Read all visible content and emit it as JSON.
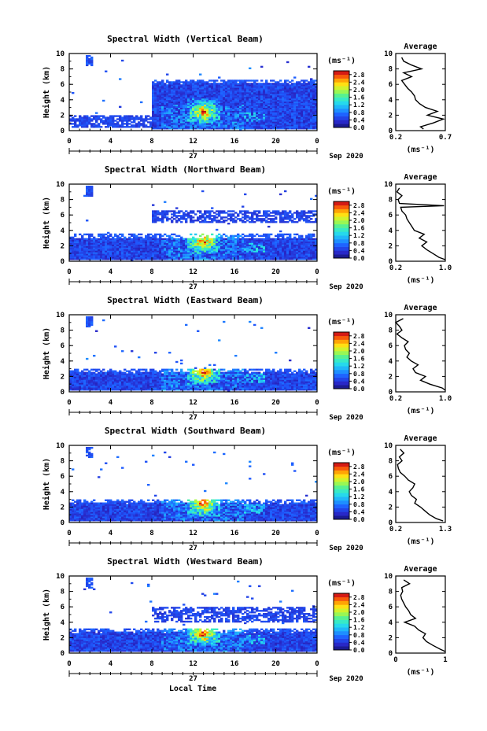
{
  "figure": {
    "xlabel": "Local Time",
    "date_label": "Sep 2020",
    "day_label": "27",
    "unit_label": "(ms⁻¹)"
  },
  "chart_data": [
    {
      "type": "heatmap",
      "title": "Spectral Width (Vertical Beam)",
      "ylabel": "Height (km)",
      "xlim": [
        0,
        24
      ],
      "ylim": [
        0,
        10
      ],
      "xticks": [
        "0",
        "4",
        "8",
        "12",
        "16",
        "20",
        "0"
      ],
      "yticks": [
        "0",
        "2",
        "4",
        "6",
        "8",
        "10"
      ],
      "colorbar": {
        "ticks": [
          "0.0",
          "0.4",
          "0.8",
          "1.2",
          "1.6",
          "2.0",
          "2.4",
          "2.8"
        ],
        "range": [
          0,
          3.0
        ]
      },
      "features": {
        "core_height": [
          0.2,
          6.5
        ],
        "core_hours": [
          8,
          24
        ],
        "peak_hour": 13,
        "peak_height": 2.5,
        "low_band_hours": [
          0,
          8
        ],
        "low_band_height": [
          0.5,
          2
        ],
        "blob_hour": 2,
        "blob_height": [
          8.5,
          9.7
        ]
      },
      "average_profile": {
        "title": "Average",
        "xlabel": "(ms⁻¹)",
        "xticks": [
          "0.2",
          "0.7"
        ],
        "xlim": [
          0.2,
          0.7
        ],
        "yticks": [
          "0",
          "2",
          "4",
          "6",
          "8",
          "10"
        ],
        "height": [
          0.2,
          0.5,
          1.0,
          1.5,
          2.0,
          2.5,
          3.0,
          3.5,
          4.0,
          4.5,
          5.0,
          5.5,
          6.0,
          6.5,
          7.0,
          7.5,
          8.0,
          8.5,
          9.0,
          9.5
        ],
        "value": [
          0.48,
          0.45,
          0.58,
          0.68,
          0.52,
          0.62,
          0.5,
          0.44,
          0.4,
          0.39,
          0.36,
          0.32,
          0.29,
          0.26,
          0.36,
          0.28,
          0.46,
          0.36,
          0.28,
          0.26
        ]
      }
    },
    {
      "type": "heatmap",
      "title": "Spectral Width (Northward Beam)",
      "ylabel": "Height (km)",
      "xlim": [
        0,
        24
      ],
      "ylim": [
        0,
        10
      ],
      "xticks": [
        "0",
        "4",
        "8",
        "12",
        "16",
        "20",
        "0"
      ],
      "yticks": [
        "0",
        "2",
        "4",
        "6",
        "8",
        "10"
      ],
      "colorbar": {
        "ticks": [
          "0.0",
          "0.4",
          "0.8",
          "1.2",
          "1.6",
          "2.0",
          "2.4",
          "2.8"
        ],
        "range": [
          0,
          3.0
        ]
      },
      "features": {
        "core_height": [
          0.2,
          3.5
        ],
        "core_hours": [
          0,
          24
        ],
        "peak_hour": 13,
        "peak_height": 2.6,
        "layer_height": [
          5.0,
          6.5
        ],
        "blob_hour": 2,
        "blob_height": [
          8.5,
          9.7
        ]
      },
      "average_profile": {
        "title": "Average",
        "xlabel": "(ms⁻¹)",
        "xticks": [
          "0.2",
          "1.0"
        ],
        "xlim": [
          0.2,
          1.0
        ],
        "yticks": [
          "0",
          "2",
          "4",
          "6",
          "8",
          "10"
        ],
        "height": [
          0.2,
          0.5,
          1.0,
          1.5,
          2.0,
          2.5,
          3.0,
          3.5,
          4.0,
          4.5,
          5.0,
          5.5,
          6.0,
          6.5,
          7.0,
          7.2,
          7.5,
          8.0,
          8.5,
          9.0,
          9.5
        ],
        "value": [
          1.0,
          0.9,
          0.8,
          0.7,
          0.62,
          0.7,
          0.58,
          0.66,
          0.5,
          0.46,
          0.42,
          0.38,
          0.36,
          0.3,
          0.28,
          0.98,
          0.26,
          0.24,
          0.3,
          0.22,
          0.26
        ]
      }
    },
    {
      "type": "heatmap",
      "title": "Spectral Width (Eastward Beam)",
      "ylabel": "Height (km)",
      "xlim": [
        0,
        24
      ],
      "ylim": [
        0,
        10
      ],
      "xticks": [
        "0",
        "4",
        "8",
        "12",
        "16",
        "20",
        "0"
      ],
      "yticks": [
        "0",
        "2",
        "4",
        "6",
        "8",
        "10"
      ],
      "colorbar": {
        "ticks": [
          "0.0",
          "0.4",
          "0.8",
          "1.2",
          "1.6",
          "2.0",
          "2.4",
          "2.8"
        ],
        "range": [
          0,
          3.0
        ]
      },
      "features": {
        "core_height": [
          0.2,
          3.0
        ],
        "core_hours": [
          0,
          24
        ],
        "peak_hour": 13,
        "peak_height": 2.6,
        "blob_hour": 2,
        "blob_height": [
          8.5,
          9.7
        ]
      },
      "average_profile": {
        "title": "Average",
        "xlabel": "(ms⁻¹)",
        "xticks": [
          "0.2",
          "1.0"
        ],
        "xlim": [
          0.2,
          1.0
        ],
        "yticks": [
          "0",
          "2",
          "4",
          "6",
          "8",
          "10"
        ],
        "height": [
          0.2,
          0.5,
          1.0,
          1.5,
          2.0,
          2.5,
          3.0,
          3.5,
          4.0,
          4.5,
          5.0,
          5.5,
          6.0,
          6.5,
          7.0,
          7.5,
          8.0,
          8.5,
          9.0,
          9.5
        ],
        "value": [
          1.0,
          0.95,
          0.75,
          0.6,
          0.68,
          0.52,
          0.48,
          0.56,
          0.45,
          0.38,
          0.42,
          0.36,
          0.34,
          0.4,
          0.3,
          0.22,
          0.3,
          0.26,
          0.2,
          0.32
        ]
      }
    },
    {
      "type": "heatmap",
      "title": "Spectral Width (Southward Beam)",
      "ylabel": "Height (km)",
      "xlim": [
        0,
        24
      ],
      "ylim": [
        0,
        10
      ],
      "xticks": [
        "0",
        "4",
        "8",
        "12",
        "16",
        "20",
        "0"
      ],
      "yticks": [
        "0",
        "2",
        "4",
        "6",
        "8",
        "10"
      ],
      "colorbar": {
        "ticks": [
          "0.0",
          "0.4",
          "0.8",
          "1.2",
          "1.6",
          "2.0",
          "2.4",
          "2.8"
        ],
        "range": [
          0,
          3.0
        ]
      },
      "features": {
        "core_height": [
          0.2,
          3.0
        ],
        "core_hours": [
          0,
          24
        ],
        "peak_hour": 13,
        "peak_height": 2.4,
        "blob_hour": 2,
        "blob_height": [
          8.5,
          9.7
        ]
      },
      "average_profile": {
        "title": "Average",
        "xlabel": "(ms⁻¹)",
        "xticks": [
          "0.2",
          "1.3"
        ],
        "xlim": [
          0.2,
          1.3
        ],
        "yticks": [
          "0",
          "2",
          "4",
          "6",
          "8",
          "10"
        ],
        "height": [
          0.2,
          0.5,
          1.0,
          1.5,
          2.0,
          2.5,
          3.0,
          3.5,
          4.0,
          4.5,
          5.0,
          5.5,
          6.0,
          6.5,
          7.0,
          7.5,
          8.0,
          8.5,
          9.0,
          9.5
        ],
        "value": [
          1.25,
          1.1,
          0.95,
          0.85,
          0.75,
          0.62,
          0.66,
          0.55,
          0.5,
          0.58,
          0.62,
          0.48,
          0.4,
          0.3,
          0.26,
          0.24,
          0.34,
          0.28,
          0.38,
          0.3
        ]
      }
    },
    {
      "type": "heatmap",
      "title": "Spectral Width (Westward Beam)",
      "ylabel": "Height (km)",
      "xlim": [
        0,
        24
      ],
      "ylim": [
        0,
        10
      ],
      "xticks": [
        "0",
        "4",
        "8",
        "12",
        "16",
        "20",
        "0"
      ],
      "yticks": [
        "0",
        "2",
        "4",
        "6",
        "8",
        "10"
      ],
      "colorbar": {
        "ticks": [
          "0.0",
          "0.4",
          "0.8",
          "1.2",
          "1.6",
          "2.0",
          "2.4",
          "2.8"
        ],
        "range": [
          0,
          3.0
        ]
      },
      "features": {
        "core_height": [
          0.2,
          3.2
        ],
        "core_hours": [
          0,
          24
        ],
        "peak_hour": 13,
        "peak_height": 2.5,
        "layer_height": [
          4.0,
          6.0
        ],
        "blob_hour": 2,
        "blob_height": [
          8.5,
          9.7
        ]
      },
      "average_profile": {
        "title": "Average",
        "xlabel": "(ms⁻¹)",
        "xticks": [
          "0",
          "1"
        ],
        "xlim": [
          0,
          1
        ],
        "yticks": [
          "0",
          "2",
          "4",
          "6",
          "8",
          "10"
        ],
        "height": [
          0.2,
          0.5,
          1.0,
          1.5,
          2.0,
          2.5,
          3.0,
          3.5,
          4.0,
          4.5,
          5.0,
          5.5,
          6.0,
          6.5,
          7.0,
          7.5,
          8.0,
          8.5,
          9.0,
          9.5
        ],
        "value": [
          1.0,
          0.9,
          0.75,
          0.62,
          0.55,
          0.6,
          0.46,
          0.38,
          0.18,
          0.4,
          0.3,
          0.26,
          0.2,
          0.16,
          0.12,
          0.1,
          0.14,
          0.12,
          0.28,
          0.16
        ]
      }
    }
  ]
}
